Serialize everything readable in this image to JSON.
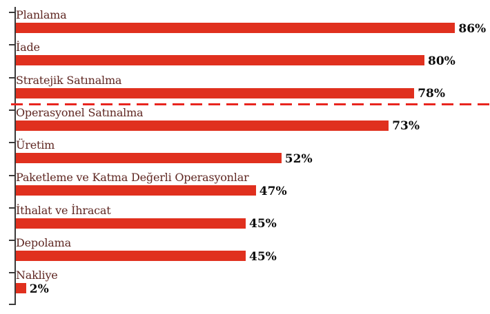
{
  "chart_data": {
    "type": "bar",
    "orientation": "horizontal",
    "title": "",
    "categories": [
      "Planlama",
      "İade",
      "Stratejik Satınalma",
      "Operasyonel Satınalma",
      "Üretim",
      "Paketleme ve Katma Değerli Operasyonlar",
      "İthalat ve İhracat",
      "Depolama",
      "Nakliye"
    ],
    "values": [
      86,
      80,
      78,
      73,
      52,
      47,
      45,
      45,
      2
    ],
    "value_labels": [
      "86%",
      "80%",
      "78%",
      "73%",
      "52%",
      "47%",
      "45%",
      "45%",
      "2%"
    ],
    "xlabel": "",
    "ylabel": "",
    "xlim": [
      0,
      100
    ],
    "grid": false,
    "legend": false,
    "axis": {
      "side": "left",
      "tick_per_category": true,
      "bottom_end_tick": true
    },
    "divider_line": {
      "style": "dashed",
      "between_categories": [
        "Stratejik Satınalma",
        "Operasyonel Satınalma"
      ],
      "color": "#e8251e"
    },
    "colors": {
      "bar": "#e0301e",
      "category_label": "#5f2722",
      "value_label": "#0d0d0d",
      "axis": "#3a3a3a",
      "background": "#ffffff"
    }
  }
}
